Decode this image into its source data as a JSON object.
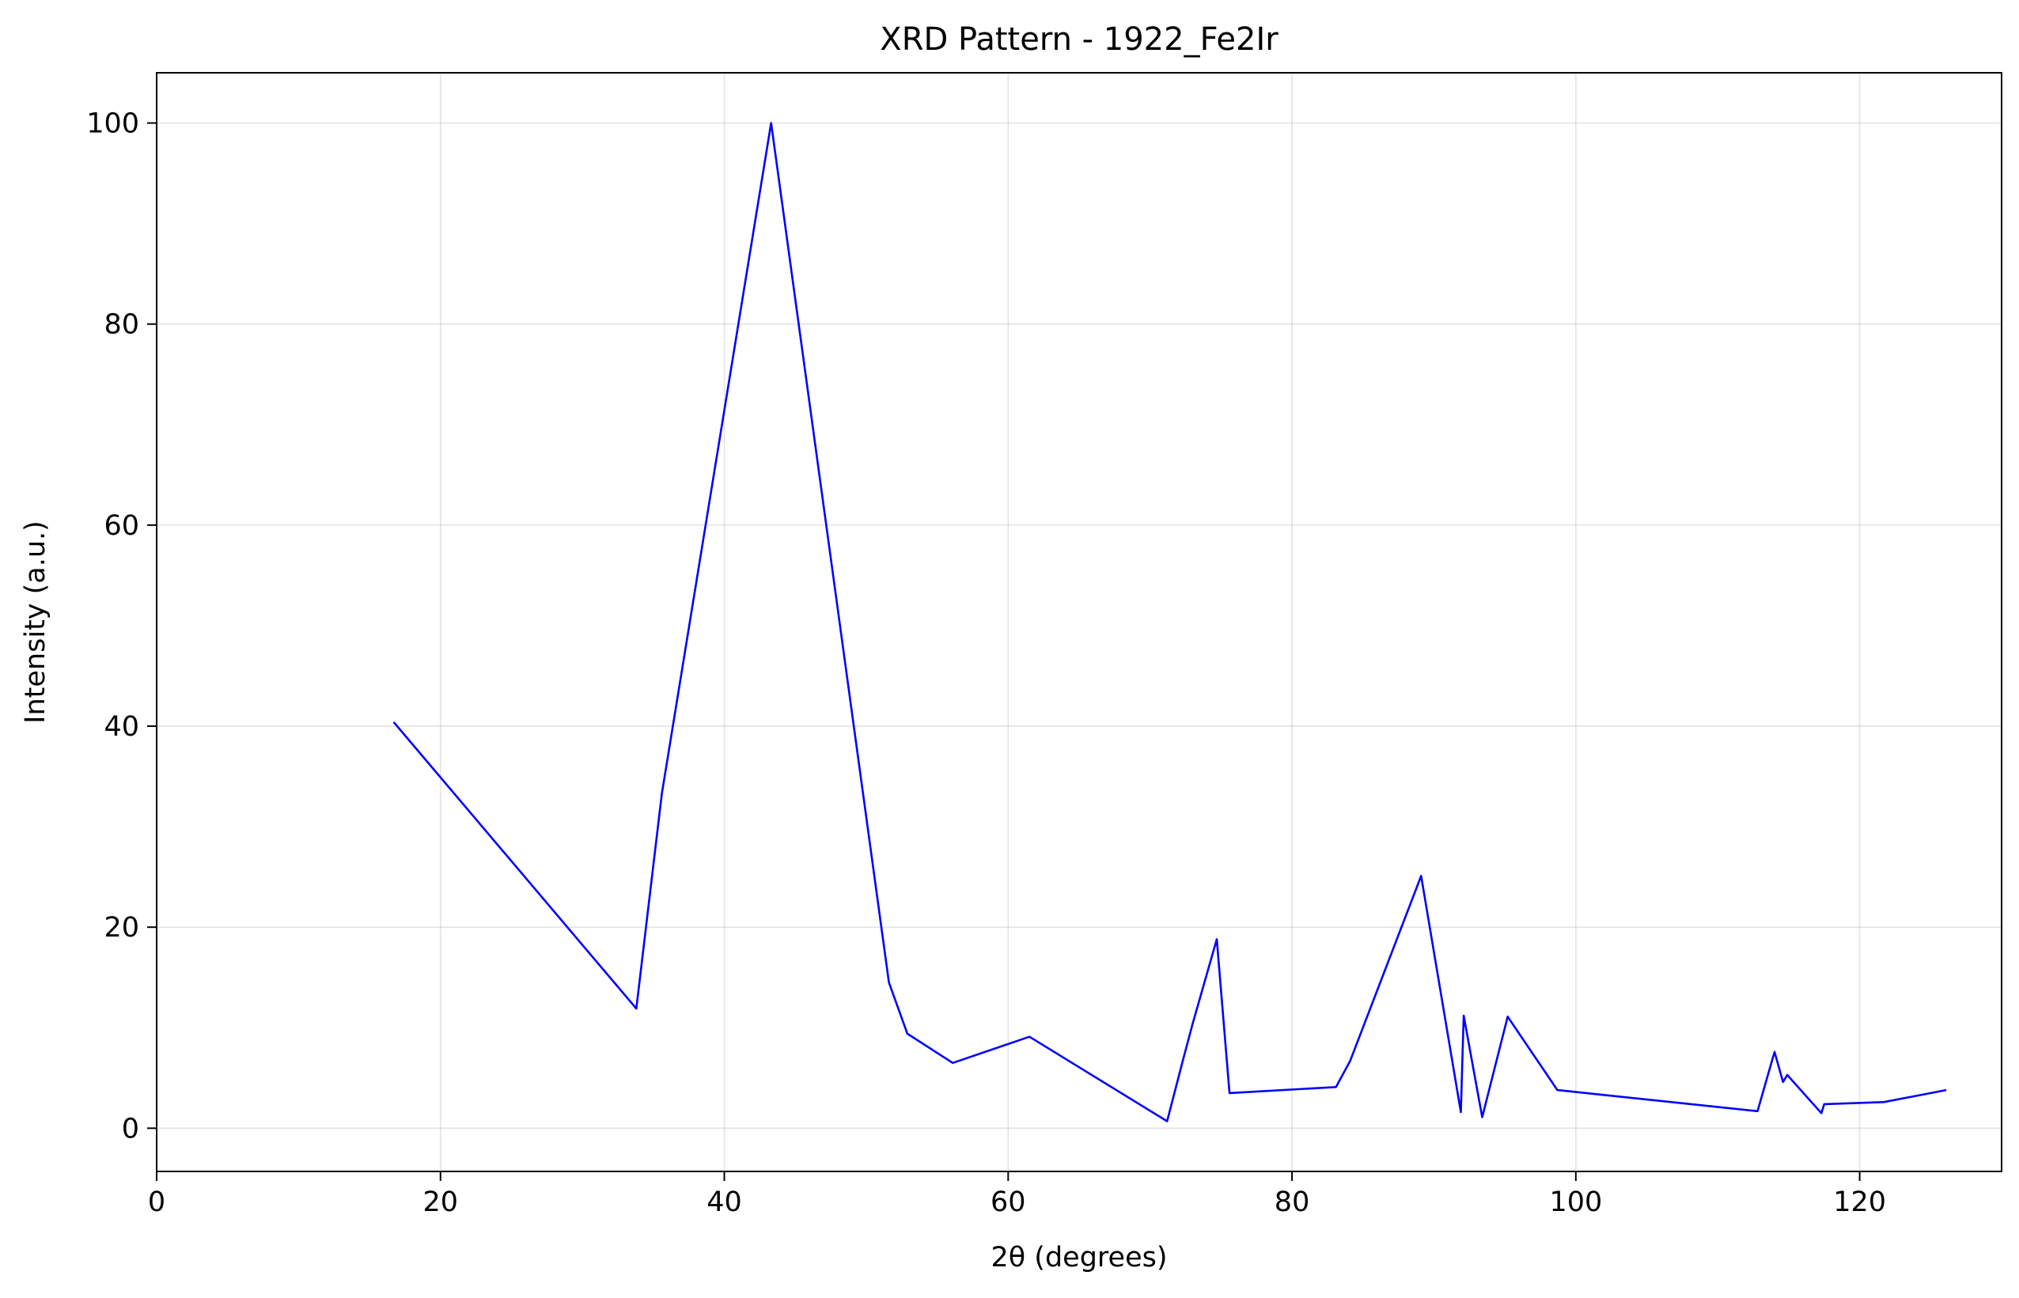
{
  "chart_data": {
    "type": "line",
    "title": "XRD Pattern - 1922_Fe2Ir",
    "xlabel": "2θ (degrees)",
    "ylabel": "Intensity (a.u.)",
    "xlim": [
      0,
      130
    ],
    "ylim": [
      -4.3,
      105
    ],
    "x_ticks": [
      0,
      20,
      40,
      60,
      80,
      100,
      120
    ],
    "y_ticks": [
      0,
      20,
      40,
      60,
      80,
      100
    ],
    "grid": true,
    "legend": "none",
    "series": [
      {
        "color": "#0000ff",
        "x": [
          16.7,
          33.8,
          35.6,
          43.3,
          51.6,
          52.9,
          56.1,
          61.5,
          71.2,
          72.3,
          73.0,
          74.7,
          75.6,
          83.1,
          84.1,
          89.1,
          91.9,
          92.1,
          93.4,
          95.2,
          98.7,
          112.8,
          114.0,
          114.6,
          114.9,
          117.3,
          117.5,
          121.7,
          126.1
        ],
        "y": [
          40.4,
          11.9,
          33.3,
          100.0,
          14.5,
          9.4,
          6.5,
          9.1,
          0.7,
          6.7,
          10.4,
          18.8,
          3.5,
          4.1,
          6.7,
          25.1,
          1.6,
          11.2,
          1.1,
          11.1,
          3.8,
          1.7,
          7.6,
          4.6,
          5.3,
          1.5,
          2.4,
          2.6,
          3.8
        ]
      }
    ]
  }
}
